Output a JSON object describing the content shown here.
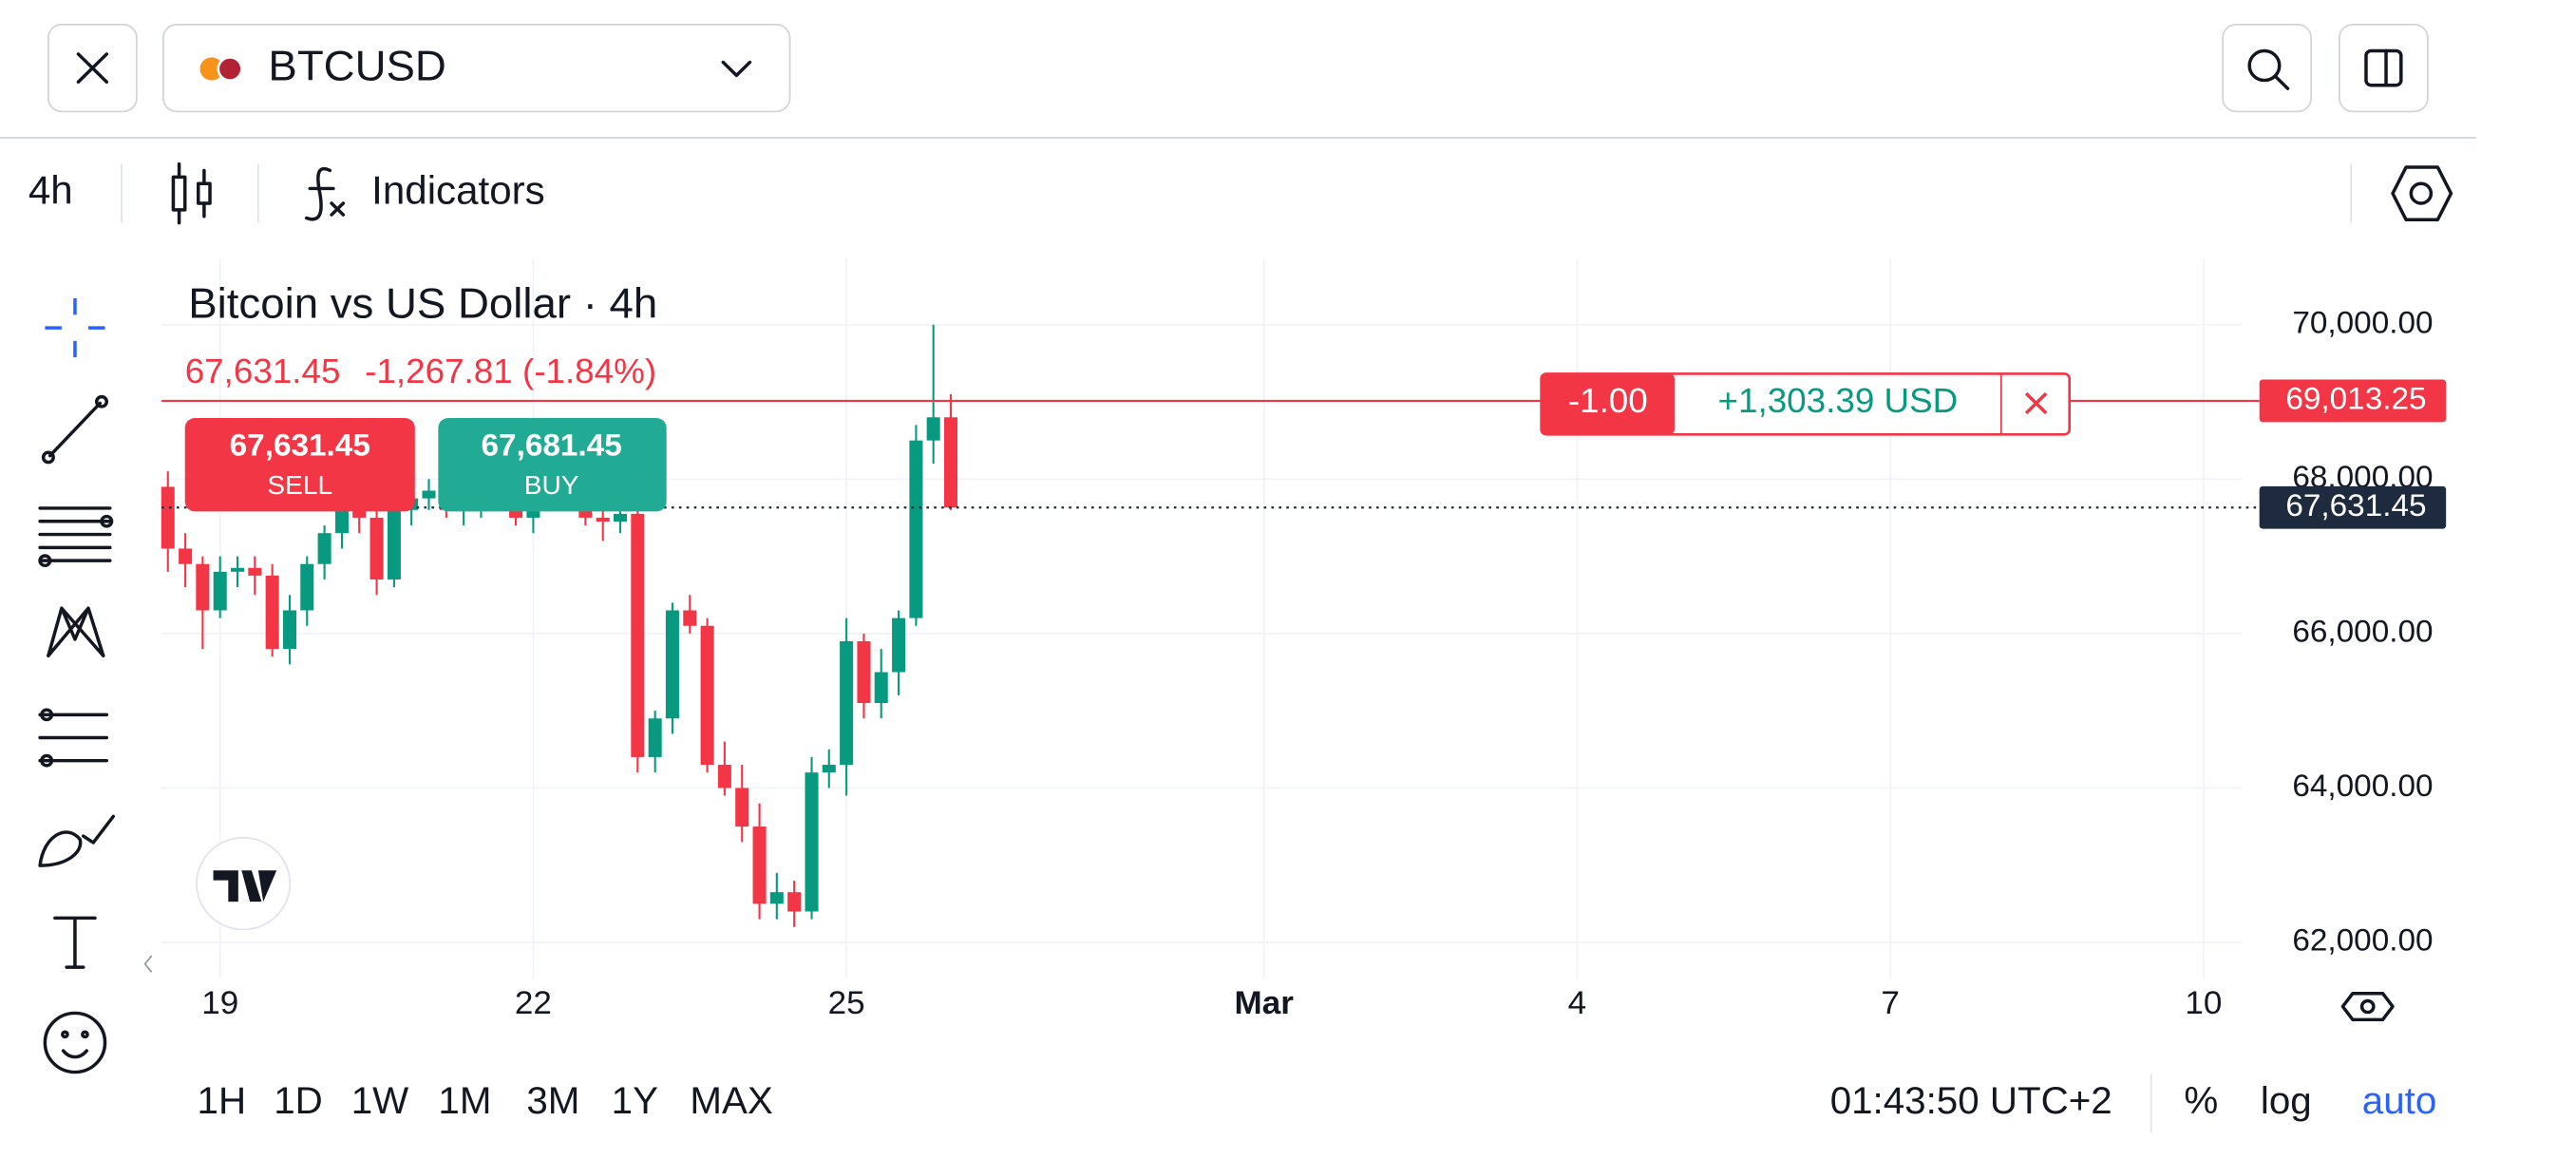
{
  "header": {
    "symbol": "BTCUSD",
    "interval": "4h",
    "indicators": "Indicators"
  },
  "chart_data": {
    "type": "candlestick",
    "title": "Bitcoin vs US Dollar · 4h",
    "last": "67,631.45",
    "change": "-1,267.81 (-1.84%)",
    "sell": {
      "price": "67,631.45",
      "label": "SELL"
    },
    "buy": {
      "price": "67,681.45",
      "label": "BUY"
    },
    "x": [
      18.5,
      18.667,
      18.833,
      19,
      19.167,
      19.333,
      19.5,
      19.667,
      19.833,
      20,
      20.167,
      20.333,
      20.5,
      20.667,
      20.833,
      21,
      21.167,
      21.333,
      21.5,
      21.667,
      21.833,
      22,
      22.167,
      22.333,
      22.5,
      22.667,
      22.833,
      23,
      23.167,
      23.333,
      23.5,
      23.667,
      23.833,
      24,
      24.167,
      24.333,
      24.5,
      24.667,
      24.833,
      25,
      25.167,
      25.333,
      25.5,
      25.667,
      25.833,
      26
    ],
    "open": [
      67900,
      67100,
      66900,
      66300,
      66800,
      66850,
      66750,
      65800,
      66300,
      66900,
      67300,
      67700,
      67500,
      66700,
      67600,
      67750,
      67850,
      67600,
      67700,
      67850,
      67650,
      67500,
      67700,
      67900,
      67800,
      67500,
      67450,
      67550,
      64400,
      64900,
      66300,
      66100,
      64300,
      64000,
      63500,
      62500,
      62650,
      62400,
      64200,
      64300,
      65900,
      65100,
      65500,
      66200,
      68500,
      68800
    ],
    "high": [
      68100,
      67300,
      67000,
      67000,
      67000,
      67000,
      66900,
      66500,
      67000,
      67400,
      67800,
      67900,
      67800,
      67700,
      67900,
      68000,
      67950,
      67900,
      68000,
      68100,
      67900,
      67800,
      68000,
      68100,
      68000,
      67700,
      67700,
      67600,
      65000,
      66400,
      66500,
      66200,
      64600,
      64300,
      63800,
      62900,
      62800,
      64400,
      64500,
      66200,
      66000,
      65800,
      66300,
      68700,
      70000,
      69100
    ],
    "low": [
      66800,
      66600,
      65800,
      66200,
      66600,
      66500,
      65700,
      65600,
      66100,
      66700,
      67100,
      67300,
      66500,
      66600,
      67400,
      67600,
      67500,
      67400,
      67500,
      67600,
      67400,
      67300,
      67600,
      67700,
      67400,
      67200,
      67300,
      64200,
      64200,
      64700,
      66000,
      64200,
      63900,
      63300,
      62300,
      62300,
      62200,
      62300,
      64000,
      63900,
      64900,
      64900,
      65200,
      66100,
      68200,
      67600
    ],
    "close": [
      67100,
      66900,
      66300,
      66800,
      66850,
      66750,
      65800,
      66300,
      66900,
      67300,
      67700,
      67500,
      66700,
      67600,
      67750,
      67850,
      67600,
      67700,
      67850,
      67650,
      67500,
      67700,
      67900,
      67800,
      67500,
      67450,
      67550,
      64400,
      64900,
      66300,
      66100,
      64300,
      64000,
      63500,
      62500,
      62650,
      62400,
      64200,
      64300,
      65900,
      65100,
      65500,
      66200,
      68500,
      68800,
      67631.45
    ],
    "up_color": "#089981",
    "down_color": "#f23645",
    "xlim": [
      18.44,
      38.28
    ],
    "xticks": [
      19,
      22,
      25,
      {
        "value": 29,
        "label": "Mar"
      },
      {
        "value": 32,
        "label": "4"
      },
      {
        "value": 35,
        "label": "7"
      },
      {
        "value": 38,
        "label": "10"
      }
    ],
    "ylim": [
      61530,
      70850
    ],
    "yticks": [
      {
        "value": 62000,
        "label": "62,000.00"
      },
      {
        "value": 64000,
        "label": "64,000.00"
      },
      {
        "value": 66000,
        "label": "66,000.00"
      },
      {
        "value": 68000,
        "label": "68,000.00"
      },
      {
        "value": 70000,
        "label": "70,000.00"
      }
    ],
    "grid": true,
    "price_lines": [
      {
        "value": 69013.25,
        "label": "69,013.25",
        "color": "#f23645",
        "style": "solid"
      },
      {
        "value": 67631.45,
        "label": "67,631.45",
        "color": "#1e2a3e",
        "style": "dotted"
      }
    ],
    "position": {
      "qty": "-1.00",
      "pnl": "+1,303.39 USD"
    }
  },
  "footer": {
    "ranges": [
      "1H",
      "1D",
      "1W",
      "1M",
      "3M",
      "1Y",
      "MAX"
    ],
    "time": "01:43:50 UTC+2",
    "percent": "%",
    "log": "log",
    "auto": "auto"
  }
}
